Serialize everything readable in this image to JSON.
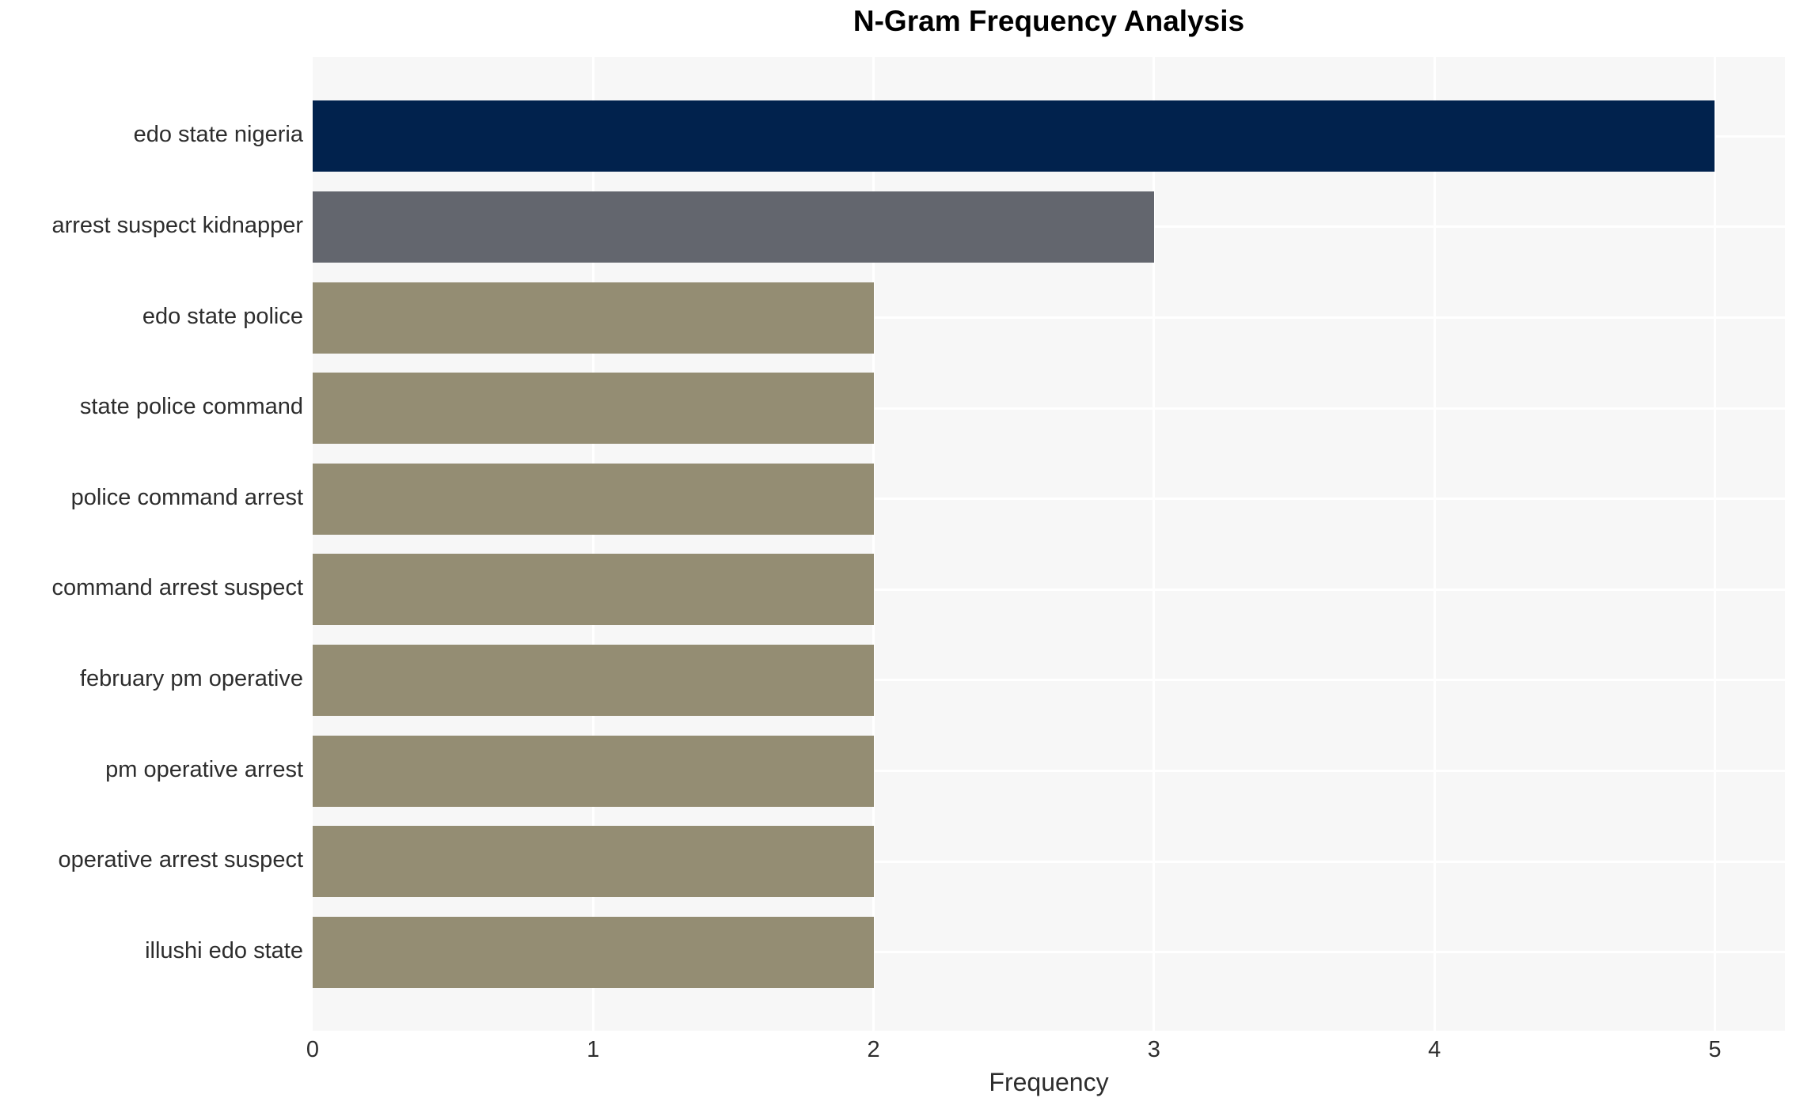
{
  "chart_data": {
    "type": "bar",
    "orientation": "horizontal",
    "title": "N-Gram Frequency Analysis",
    "xlabel": "Frequency",
    "ylabel": "",
    "categories": [
      "edo state nigeria",
      "arrest suspect kidnapper",
      "edo state police",
      "state police command",
      "police command arrest",
      "command arrest suspect",
      "february pm operative",
      "pm operative arrest",
      "operative arrest suspect",
      "illushi edo state"
    ],
    "values": [
      5,
      3,
      2,
      2,
      2,
      2,
      2,
      2,
      2,
      2
    ],
    "bar_colors": [
      "#01224d",
      "#63666e",
      "#948d73",
      "#948d73",
      "#948d73",
      "#948d73",
      "#948d73",
      "#948d73",
      "#948d73",
      "#948d73"
    ],
    "xticks": [
      0,
      1,
      2,
      3,
      4,
      5
    ],
    "xlim": [
      0,
      5.25
    ],
    "grid": true,
    "legend": "none",
    "plot_background": "#f7f7f7",
    "page_background": "#ffffff",
    "gridline_color": "#ffffff",
    "text_color": "#2d2d2d",
    "title_color": "#000000"
  }
}
